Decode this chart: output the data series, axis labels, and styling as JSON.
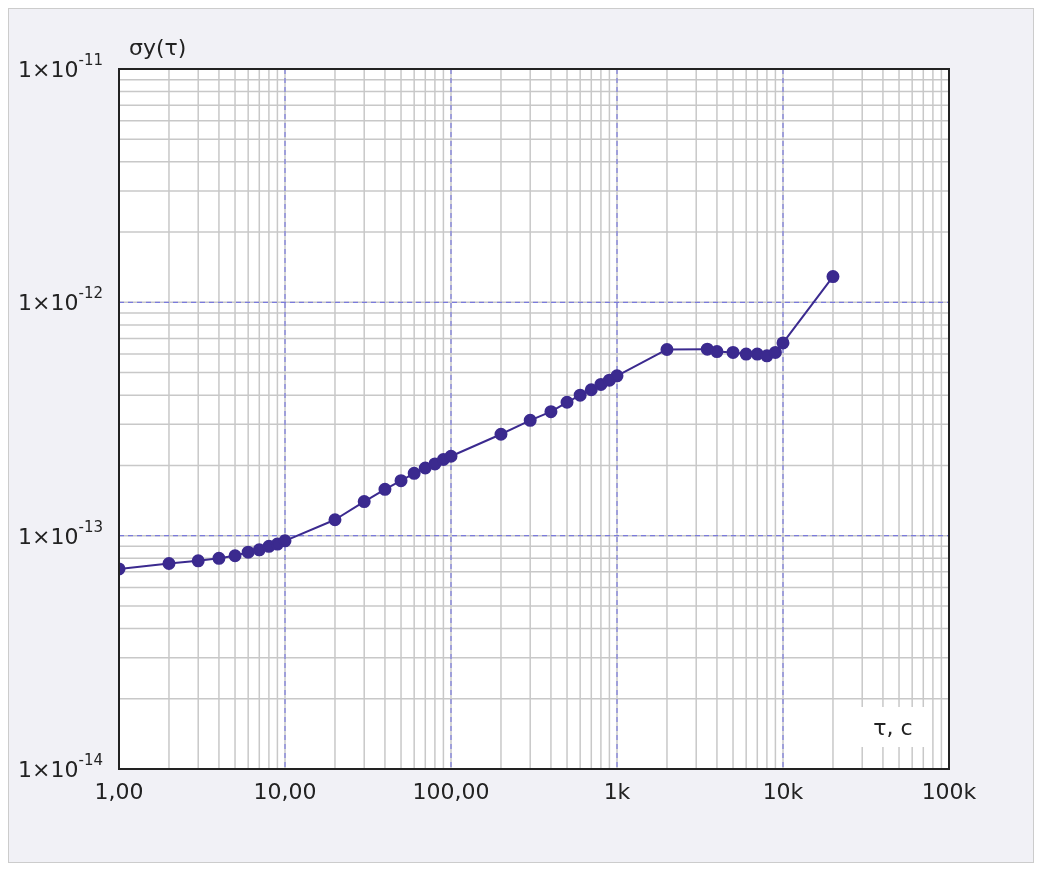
{
  "chart_data": {
    "type": "line",
    "xlabel": "τ, с",
    "ylabel": "σy(τ)",
    "log": "xy",
    "grid": true,
    "marker": "circle",
    "line_style": "solid",
    "xlim": [
      1,
      100000
    ],
    "ylim": [
      1e-14,
      1e-11
    ],
    "xticks": [
      {
        "value": 1,
        "label": "1,00"
      },
      {
        "value": 2,
        "label": null
      },
      {
        "value": 3,
        "label": null
      },
      {
        "value": 4,
        "label": null
      },
      {
        "value": 5,
        "label": null
      },
      {
        "value": 6,
        "label": null
      },
      {
        "value": 7,
        "label": null
      },
      {
        "value": 8,
        "label": null
      },
      {
        "value": 9,
        "label": null
      },
      {
        "value": 10,
        "label": "10,00"
      },
      {
        "value": 20,
        "label": null
      },
      {
        "value": 30,
        "label": null
      },
      {
        "value": 40,
        "label": null
      },
      {
        "value": 50,
        "label": null
      },
      {
        "value": 60,
        "label": null
      },
      {
        "value": 70,
        "label": null
      },
      {
        "value": 80,
        "label": null
      },
      {
        "value": 90,
        "label": null
      },
      {
        "value": 100,
        "label": "100,00"
      },
      {
        "value": 200,
        "label": null
      },
      {
        "value": 300,
        "label": null
      },
      {
        "value": 400,
        "label": null
      },
      {
        "value": 500,
        "label": null
      },
      {
        "value": 600,
        "label": null
      },
      {
        "value": 700,
        "label": null
      },
      {
        "value": 800,
        "label": null
      },
      {
        "value": 900,
        "label": null
      },
      {
        "value": 1000,
        "label": "1k"
      },
      {
        "value": 2000,
        "label": null
      },
      {
        "value": 3000,
        "label": null
      },
      {
        "value": 4000,
        "label": null
      },
      {
        "value": 5000,
        "label": null
      },
      {
        "value": 6000,
        "label": null
      },
      {
        "value": 7000,
        "label": null
      },
      {
        "value": 8000,
        "label": null
      },
      {
        "value": 9000,
        "label": null
      },
      {
        "value": 10000,
        "label": "10k"
      },
      {
        "value": 20000,
        "label": null
      },
      {
        "value": 30000,
        "label": null
      },
      {
        "value": 40000,
        "label": null
      },
      {
        "value": 50000,
        "label": null
      },
      {
        "value": 60000,
        "label": null
      },
      {
        "value": 70000,
        "label": null
      },
      {
        "value": 80000,
        "label": null
      },
      {
        "value": 90000,
        "label": null
      },
      {
        "value": 100000,
        "label": "100k"
      }
    ],
    "yticks": [
      {
        "value": 1e-14,
        "label": "1×10$^{-14}$"
      },
      {
        "value": 2e-14,
        "label": null
      },
      {
        "value": 3e-14,
        "label": null
      },
      {
        "value": 4e-14,
        "label": null
      },
      {
        "value": 5e-14,
        "label": null
      },
      {
        "value": 6e-14,
        "label": null
      },
      {
        "value": 7e-14,
        "label": null
      },
      {
        "value": 8e-14,
        "label": null
      },
      {
        "value": 9e-14,
        "label": null
      },
      {
        "value": 1e-13,
        "label": "1×10$^{-13}$"
      },
      {
        "value": 2e-13,
        "label": null
      },
      {
        "value": 3e-13,
        "label": null
      },
      {
        "value": 4e-13,
        "label": null
      },
      {
        "value": 5e-13,
        "label": null
      },
      {
        "value": 6e-13,
        "label": null
      },
      {
        "value": 7e-13,
        "label": null
      },
      {
        "value": 8e-13,
        "label": null
      },
      {
        "value": 9e-13,
        "label": null
      },
      {
        "value": 1e-12,
        "label": "1×10$^{-12}$"
      },
      {
        "value": 2e-12,
        "label": null
      },
      {
        "value": 3e-12,
        "label": null
      },
      {
        "value": 4e-12,
        "label": null
      },
      {
        "value": 5e-12,
        "label": null
      },
      {
        "value": 6e-12,
        "label": null
      },
      {
        "value": 7e-12,
        "label": null
      },
      {
        "value": 8e-12,
        "label": null
      },
      {
        "value": 9e-12,
        "label": null
      },
      {
        "value": 1e-11,
        "label": "1×10$^{-11}$"
      }
    ],
    "x": [
      1,
      2,
      3,
      4,
      5,
      6,
      7,
      8,
      9,
      10,
      20,
      30,
      40,
      50,
      60,
      70,
      80,
      90,
      100,
      200,
      300,
      400,
      500,
      600,
      700,
      800,
      900,
      1000,
      2000,
      3500,
      4000,
      5000,
      6000,
      7000,
      8000,
      9000,
      10000,
      20000
    ],
    "series": [
      {
        "color": "#3b2a8f",
        "values": [
          7.2e-14,
          7.6e-14,
          7.8e-14,
          8e-14,
          8.2e-14,
          8.5e-14,
          8.7e-14,
          9e-14,
          9.2e-14,
          9.5e-14,
          1.17e-13,
          1.4e-13,
          1.58e-13,
          1.72e-13,
          1.85e-13,
          1.95e-13,
          2.03e-13,
          2.12e-13,
          2.19e-13,
          2.72e-13,
          3.12e-13,
          3.4e-13,
          3.73e-13,
          4e-13,
          4.22e-13,
          4.45e-13,
          4.64e-13,
          4.84e-13,
          6.28e-13,
          6.3e-13,
          6.15e-13,
          6.1e-13,
          6e-13,
          6e-13,
          5.9e-13,
          6.1e-13,
          6.7e-13,
          1.29e-12
        ]
      }
    ]
  }
}
